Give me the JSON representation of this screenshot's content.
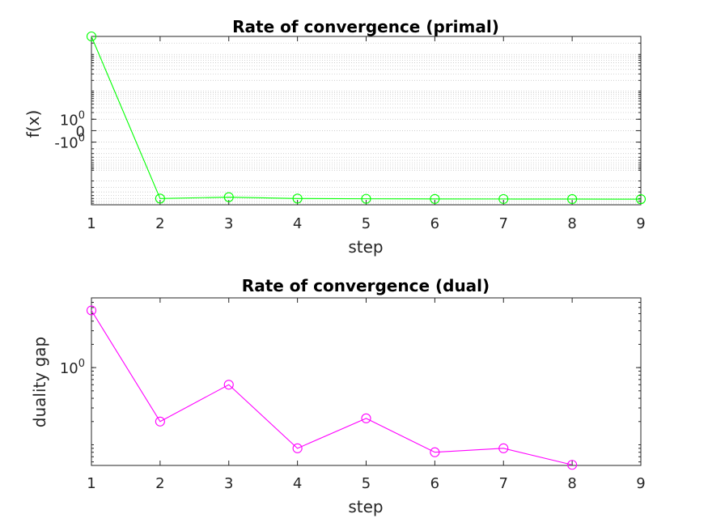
{
  "chart_data": [
    {
      "type": "line",
      "title": "Rate of convergence (primal)",
      "xlabel": "step",
      "ylabel": "f(x)",
      "yscale": "symlog",
      "grid": "minor-dotted",
      "xlim": [
        1,
        9
      ],
      "x_ticks": [
        "1",
        "2",
        "3",
        "4",
        "5",
        "6",
        "7",
        "8",
        "9"
      ],
      "y_tick_labels": [
        {
          "value": 1,
          "base": "10",
          "exp": "0"
        },
        {
          "value": 0,
          "base": "0",
          "exp": ""
        },
        {
          "value": -1,
          "base": "-10",
          "exp": "0"
        }
      ],
      "color": "#00ff00",
      "marker": "circle",
      "series": [
        {
          "x": [
            1,
            2,
            3,
            4,
            5,
            6,
            7,
            8,
            9
          ],
          "values": [
            300,
            -60,
            -55,
            -60,
            -61,
            -61.5,
            -61.8,
            -62,
            -62.3
          ]
        }
      ]
    },
    {
      "type": "line",
      "title": "Rate of convergence (dual)",
      "xlabel": "step",
      "ylabel": "duality gap",
      "yscale": "log",
      "xlim": [
        1,
        9
      ],
      "ylim": [
        0.054,
        8
      ],
      "x_ticks": [
        "1",
        "2",
        "3",
        "4",
        "5",
        "6",
        "7",
        "8",
        "9"
      ],
      "y_tick_labels": [
        {
          "value": 1,
          "base": "10",
          "exp": "0"
        }
      ],
      "color": "#ff00ff",
      "marker": "circle",
      "series": [
        {
          "x": [
            1,
            2,
            3,
            4,
            5,
            6,
            7,
            8
          ],
          "values": [
            5.5,
            0.2,
            0.6,
            0.09,
            0.22,
            0.08,
            0.09,
            0.055
          ]
        }
      ]
    }
  ]
}
